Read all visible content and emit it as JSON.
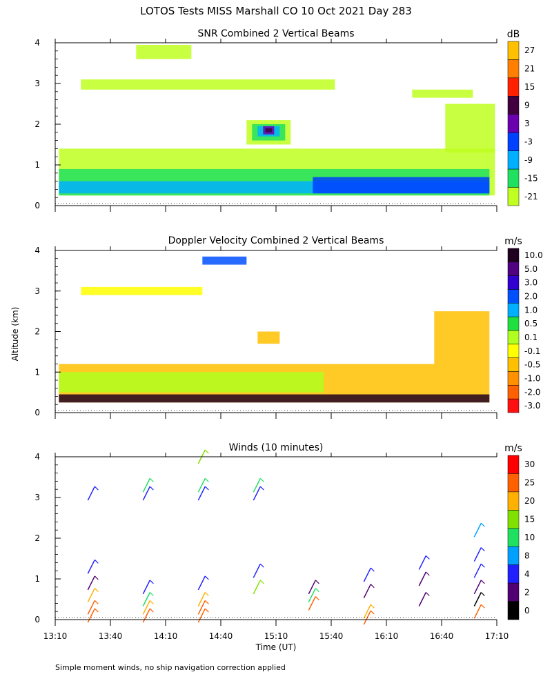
{
  "page_title": "LOTOS Tests MISS Marshall CO  10 Oct 2021 Day 283",
  "y_axis_label": "Altitude (km)",
  "x_axis_label": "Time (UT)",
  "footnote": "Simple moment winds, no ship navigation correction applied",
  "chart_data": [
    {
      "type": "heatmap",
      "title": "SNR Combined 2 Vertical Beams",
      "x_ticks": [
        "13:10",
        "13:40",
        "14:10",
        "14:40",
        "15:10",
        "15:40",
        "16:10",
        "16:40",
        "17:10"
      ],
      "x_range_utc_hours": [
        13.1667,
        17.1667
      ],
      "y_ticks": [
        "0",
        "1",
        "2",
        "3",
        "4"
      ],
      "y_range_km": [
        0,
        4
      ],
      "colorbar": {
        "unit": "dB",
        "labels": [
          "27",
          "21",
          "15",
          "9",
          "3",
          "-3",
          "-9",
          "-15",
          "-21"
        ],
        "colors": [
          "#ffc000",
          "#ff8000",
          "#ff2000",
          "#400040",
          "#6a00b0",
          "#0040ff",
          "#00b0ff",
          "#20e060",
          "#c0ff20"
        ]
      },
      "regions": [
        {
          "level": "-21",
          "t0": 13.2,
          "t1": 17.15,
          "z0": 0.25,
          "z1": 1.4
        },
        {
          "level": "-15",
          "t0": 13.2,
          "t1": 17.1,
          "z0": 0.25,
          "z1": 0.9
        },
        {
          "level": "-9",
          "t0": 13.2,
          "t1": 17.1,
          "z0": 0.3,
          "z1": 0.6
        },
        {
          "level": "-3",
          "t0": 15.5,
          "t1": 17.1,
          "z0": 0.3,
          "z1": 0.7
        },
        {
          "level": "-21",
          "t0": 13.4,
          "t1": 15.7,
          "z0": 2.85,
          "z1": 3.1
        },
        {
          "level": "-21",
          "t0": 16.4,
          "t1": 16.95,
          "z0": 2.65,
          "z1": 2.85
        },
        {
          "level": "-21",
          "t0": 16.7,
          "t1": 17.15,
          "z0": 1.3,
          "z1": 2.5
        },
        {
          "level": "-21",
          "t0": 13.9,
          "t1": 14.4,
          "z0": 3.6,
          "z1": 3.95
        },
        {
          "level": "-21",
          "t0": 14.9,
          "t1": 15.3,
          "z0": 1.5,
          "z1": 2.1
        },
        {
          "level": "-15",
          "t0": 14.95,
          "t1": 15.25,
          "z0": 1.6,
          "z1": 2.0
        },
        {
          "level": "-9",
          "t0": 15.0,
          "t1": 15.2,
          "z0": 1.7,
          "z1": 1.95
        },
        {
          "level": "3",
          "t0": 15.05,
          "t1": 15.15,
          "z0": 1.75,
          "z1": 1.95
        },
        {
          "level": "9",
          "t0": 15.07,
          "t1": 15.13,
          "z0": 1.8,
          "z1": 1.9
        }
      ]
    },
    {
      "type": "heatmap",
      "title": "Doppler Velocity Combined 2 Vertical Beams",
      "x_ticks": [
        "13:10",
        "13:40",
        "14:10",
        "14:40",
        "15:10",
        "15:40",
        "16:10",
        "16:40",
        "17:10"
      ],
      "x_range_utc_hours": [
        13.1667,
        17.1667
      ],
      "y_ticks": [
        "0",
        "1",
        "2",
        "3",
        "4"
      ],
      "y_range_km": [
        0,
        4
      ],
      "colorbar": {
        "unit": "m/s",
        "labels": [
          "10.0",
          "5.0",
          "3.0",
          "2.0",
          "1.0",
          "0.5",
          "0.1",
          "-0.1",
          "-0.5",
          "-1.0",
          "-2.0",
          "-3.0"
        ],
        "colors": [
          "#200020",
          "#500080",
          "#3000d0",
          "#0050ff",
          "#00b0ff",
          "#20e040",
          "#b0ff20",
          "#ffff00",
          "#ffc000",
          "#ff9000",
          "#ff6000",
          "#ff1010"
        ]
      },
      "regions": [
        {
          "level": "-0.5",
          "t0": 13.2,
          "t1": 17.1,
          "z0": 0.25,
          "z1": 1.2
        },
        {
          "level": "0.1",
          "t0": 13.2,
          "t1": 15.6,
          "z0": 0.5,
          "z1": 1.0
        },
        {
          "level": "10.0",
          "t0": 13.2,
          "t1": 17.1,
          "z0": 0.25,
          "z1": 0.45
        },
        {
          "level": "-0.5",
          "t0": 16.6,
          "t1": 17.1,
          "z0": 1.2,
          "z1": 2.5
        },
        {
          "level": "-0.5",
          "t0": 15.0,
          "t1": 15.2,
          "z0": 1.7,
          "z1": 2.0
        },
        {
          "level": "-0.1",
          "t0": 13.4,
          "t1": 14.5,
          "z0": 2.9,
          "z1": 3.1
        },
        {
          "level": "2.0",
          "t0": 14.5,
          "t1": 14.9,
          "z0": 3.65,
          "z1": 3.85
        }
      ]
    },
    {
      "type": "scatter",
      "title": "Winds (10 minutes)",
      "x_ticks": [
        "13:10",
        "13:40",
        "14:10",
        "14:40",
        "15:10",
        "15:40",
        "16:10",
        "16:40",
        "17:10"
      ],
      "x_range_utc_hours": [
        13.1667,
        17.1667
      ],
      "y_ticks": [
        "0",
        "1",
        "2",
        "3",
        "4"
      ],
      "y_range_km": [
        0,
        4
      ],
      "colorbar": {
        "unit": "m/s",
        "labels": [
          "30",
          "25",
          "20",
          "15",
          "10",
          "8",
          "4",
          "2",
          "0"
        ],
        "colors": [
          "#ff0000",
          "#ff6000",
          "#ffb000",
          "#80e000",
          "#20e060",
          "#00a0ff",
          "#2020ff",
          "#500070",
          "#000000"
        ]
      },
      "profiles_utc_hours": [
        13.5,
        14.0,
        14.5,
        15.0,
        15.5,
        16.0,
        16.5,
        17.0
      ],
      "barbs": [
        {
          "t": 13.5,
          "z": 3.1,
          "speed": 4
        },
        {
          "t": 13.5,
          "z": 1.3,
          "speed": 4
        },
        {
          "t": 13.5,
          "z": 0.9,
          "speed": 2
        },
        {
          "t": 13.5,
          "z": 0.6,
          "speed": 20
        },
        {
          "t": 13.5,
          "z": 0.3,
          "speed": 25
        },
        {
          "t": 13.5,
          "z": 0.1,
          "speed": 25
        },
        {
          "t": 14.0,
          "z": 3.3,
          "speed": 10
        },
        {
          "t": 14.0,
          "z": 3.1,
          "speed": 4
        },
        {
          "t": 14.0,
          "z": 0.8,
          "speed": 4
        },
        {
          "t": 14.0,
          "z": 0.5,
          "speed": 10
        },
        {
          "t": 14.0,
          "z": 0.3,
          "speed": 20
        },
        {
          "t": 14.0,
          "z": 0.1,
          "speed": 25
        },
        {
          "t": 14.5,
          "z": 4.0,
          "speed": 15
        },
        {
          "t": 14.5,
          "z": 3.3,
          "speed": 10
        },
        {
          "t": 14.5,
          "z": 3.1,
          "speed": 4
        },
        {
          "t": 14.5,
          "z": 0.9,
          "speed": 4
        },
        {
          "t": 14.5,
          "z": 0.5,
          "speed": 20
        },
        {
          "t": 14.5,
          "z": 0.3,
          "speed": 25
        },
        {
          "t": 14.5,
          "z": 0.1,
          "speed": 25
        },
        {
          "t": 15.0,
          "z": 3.3,
          "speed": 10
        },
        {
          "t": 15.0,
          "z": 3.1,
          "speed": 4
        },
        {
          "t": 15.0,
          "z": 1.2,
          "speed": 4
        },
        {
          "t": 15.0,
          "z": 0.8,
          "speed": 15
        },
        {
          "t": 15.5,
          "z": 0.8,
          "speed": 2
        },
        {
          "t": 15.5,
          "z": 0.6,
          "speed": 10
        },
        {
          "t": 15.5,
          "z": 0.4,
          "speed": 25
        },
        {
          "t": 16.0,
          "z": 1.1,
          "speed": 4
        },
        {
          "t": 16.0,
          "z": 0.7,
          "speed": 2
        },
        {
          "t": 16.0,
          "z": 0.2,
          "speed": 20
        },
        {
          "t": 16.0,
          "z": 0.05,
          "speed": 25
        },
        {
          "t": 16.5,
          "z": 1.4,
          "speed": 4
        },
        {
          "t": 16.5,
          "z": 1.0,
          "speed": 2
        },
        {
          "t": 16.5,
          "z": 0.5,
          "speed": 2
        },
        {
          "t": 17.0,
          "z": 2.2,
          "speed": 8
        },
        {
          "t": 17.0,
          "z": 1.6,
          "speed": 4
        },
        {
          "t": 17.0,
          "z": 1.2,
          "speed": 4
        },
        {
          "t": 17.0,
          "z": 0.8,
          "speed": 2
        },
        {
          "t": 17.0,
          "z": 0.5,
          "speed": 0
        },
        {
          "t": 17.0,
          "z": 0.2,
          "speed": 25
        }
      ]
    }
  ]
}
